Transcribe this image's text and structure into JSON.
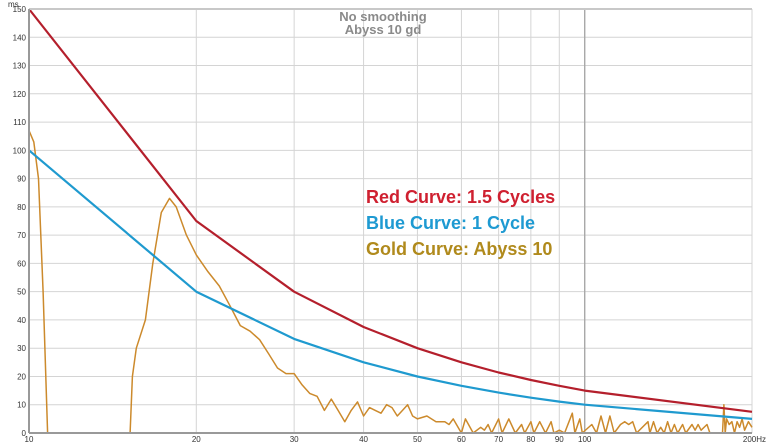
{
  "chart_data": {
    "type": "line",
    "title": "No smoothing",
    "subtitle": "Abyss 10 gd",
    "xlabel": "Hz",
    "ylabel": "ms",
    "xscale": "log",
    "xlim": [
      10,
      200
    ],
    "ylim": [
      0,
      150
    ],
    "grid": true,
    "x_ticks": [
      10,
      20,
      30,
      40,
      50,
      60,
      70,
      80,
      90,
      100,
      200
    ],
    "x_tick_labels": [
      "10",
      "20",
      "30",
      "40",
      "50",
      "60",
      "70",
      "80",
      "90",
      "100",
      "200Hz"
    ],
    "y_ticks": [
      0,
      10,
      20,
      30,
      40,
      50,
      60,
      70,
      80,
      90,
      100,
      110,
      120,
      130,
      140,
      150
    ],
    "y_unit_label": "ms",
    "legend_placement": "center-right",
    "legend": [
      {
        "text": "Red Curve: 1.5 Cycles",
        "color": "#cf2030"
      },
      {
        "text": "Blue Curve: 1 Cycle",
        "color": "#1e9ad2"
      },
      {
        "text": "Gold Curve: Abyss 10",
        "color": "#b08a1c"
      }
    ],
    "series": [
      {
        "name": "Red Curve: 1.5 Cycles",
        "color": "#b41f2c",
        "x": [
          10,
          20,
          30,
          40,
          50,
          60,
          70,
          80,
          90,
          100,
          200
        ],
        "y": [
          150,
          75,
          50,
          37.5,
          30,
          25,
          21.4,
          18.75,
          16.7,
          15,
          7.5
        ]
      },
      {
        "name": "Blue Curve: 1 Cycle",
        "color": "#1f9acf",
        "x": [
          10,
          20,
          30,
          40,
          50,
          60,
          70,
          80,
          90,
          100,
          200
        ],
        "y": [
          100,
          50,
          33.3,
          25,
          20,
          16.7,
          14.3,
          12.5,
          11.1,
          10,
          5
        ]
      },
      {
        "name": "Gold Curve: Abyss 10",
        "color": "#cc8a2c",
        "x": [
          10,
          10.2,
          10.4,
          10.6,
          10.8,
          15.2,
          15.35,
          15.6,
          16.2,
          16.7,
          17.3,
          17.9,
          18.4,
          19.2,
          20,
          21,
          22,
          23,
          24,
          25,
          26,
          27,
          28,
          29,
          30,
          31,
          32,
          33,
          34,
          35,
          36,
          37,
          38,
          39,
          40,
          41,
          42,
          43,
          44,
          45,
          46,
          47,
          48,
          49,
          50,
          52,
          54,
          56,
          57,
          58,
          60,
          61,
          63,
          65,
          66,
          67,
          68,
          70,
          71,
          73,
          75,
          77,
          78,
          80,
          81,
          83,
          85,
          87,
          88,
          90,
          92,
          95,
          96,
          98,
          99,
          103,
          105,
          107,
          109,
          111,
          113,
          116,
          118,
          120,
          122,
          124,
          130,
          131,
          133,
          135,
          137,
          139,
          141,
          143,
          145,
          147,
          150,
          152,
          156,
          158,
          160,
          162,
          166,
          168,
          177,
          178,
          179,
          180,
          182,
          184,
          186,
          188,
          190,
          192,
          194,
          197,
          200
        ],
        "y": [
          107,
          103,
          90,
          50,
          0,
          0,
          20,
          30,
          40,
          60,
          78,
          83,
          80,
          70,
          63,
          57,
          52,
          45,
          38,
          36,
          33,
          28,
          23,
          21,
          21,
          17,
          14,
          13,
          8,
          12,
          8,
          4,
          8,
          11,
          6,
          9,
          8,
          7,
          10,
          9,
          6,
          8,
          10,
          6,
          5,
          6,
          4,
          4,
          3,
          5,
          0,
          5,
          0,
          2,
          1,
          3,
          0,
          5,
          0,
          5,
          0,
          3,
          0,
          4,
          0,
          4,
          0,
          4,
          0,
          1,
          0,
          7,
          0,
          5,
          0,
          3,
          0,
          6,
          0,
          6,
          0,
          3,
          4,
          3,
          4,
          0,
          4,
          0,
          4,
          0,
          2,
          0,
          4,
          0,
          3,
          0,
          3,
          0,
          3,
          1,
          3,
          1,
          3,
          0,
          0,
          10,
          0,
          5,
          3,
          4,
          0,
          4,
          2,
          5,
          1,
          4,
          2
        ]
      }
    ]
  }
}
